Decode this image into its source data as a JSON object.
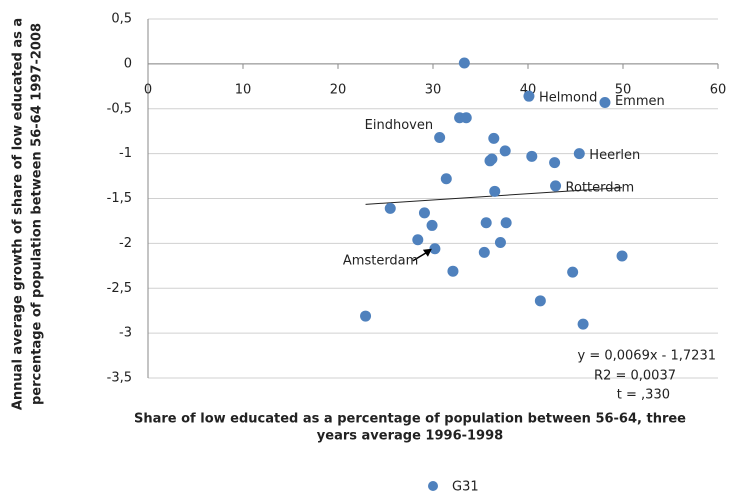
{
  "chart_data": {
    "type": "scatter",
    "x_label": [
      "Share of low educated as a percentage of population between 56-64, three",
      "years average 1996-1998"
    ],
    "y_label": [
      "Annual average growth of share of low educated as a",
      "percentage of population between 56-64 1997-2008"
    ],
    "xlim": [
      0,
      60
    ],
    "xticks": [
      0,
      10,
      20,
      30,
      40,
      50,
      60
    ],
    "ylim": [
      -3.5,
      0.5
    ],
    "yticks": [
      {
        "value": 0.5,
        "label": "0,5"
      },
      0,
      {
        "value": -0.5,
        "label": "-0,5"
      },
      -1,
      {
        "value": -1.5,
        "label": "-1,5"
      },
      -2,
      {
        "value": -2.5,
        "label": "-2,5"
      },
      -3,
      {
        "value": -3.5,
        "label": "-3,5"
      }
    ],
    "grid": true,
    "legend": "bottom",
    "series": [
      {
        "name": "G31",
        "color": "#4f81bd",
        "x": [
          33.3,
          40.1,
          48.1,
          32.8,
          33.5,
          30.7,
          36.4,
          37.6,
          36.0,
          36.2,
          40.4,
          42.8,
          45.4,
          31.4,
          42.9,
          36.5,
          25.5,
          29.1,
          35.6,
          37.7,
          29.9,
          28.4,
          37.1,
          30.2,
          35.4,
          32.1,
          44.7,
          49.9,
          41.3,
          22.9,
          45.8
        ],
        "values": [
          0.01,
          -0.36,
          -0.43,
          -0.6,
          -0.6,
          -0.82,
          -0.83,
          -0.97,
          -1.08,
          -1.06,
          -1.03,
          -1.1,
          -1.0,
          -1.28,
          -1.36,
          -1.42,
          -1.61,
          -1.66,
          -1.77,
          -1.77,
          -1.8,
          -1.96,
          -1.99,
          -2.06,
          -2.1,
          -2.31,
          -2.32,
          -2.14,
          -2.64,
          -2.81,
          -2.9
        ],
        "point_labels": [
          null,
          "Helmond",
          "Emmen",
          null,
          null,
          "Eindhoven",
          null,
          null,
          null,
          null,
          null,
          null,
          "Heerlen",
          null,
          "Rotterdam",
          null,
          null,
          null,
          null,
          null,
          null,
          null,
          null,
          "Amsterdam",
          null,
          null,
          null,
          null,
          null,
          null,
          null
        ]
      }
    ],
    "trendline": {
      "slope": 0.0069,
      "intercept": -1.7231,
      "equation": "y = 0,0069x - 1,7231"
    },
    "annotations": [
      "R2 = 0,0037",
      "t = ,330"
    ]
  }
}
